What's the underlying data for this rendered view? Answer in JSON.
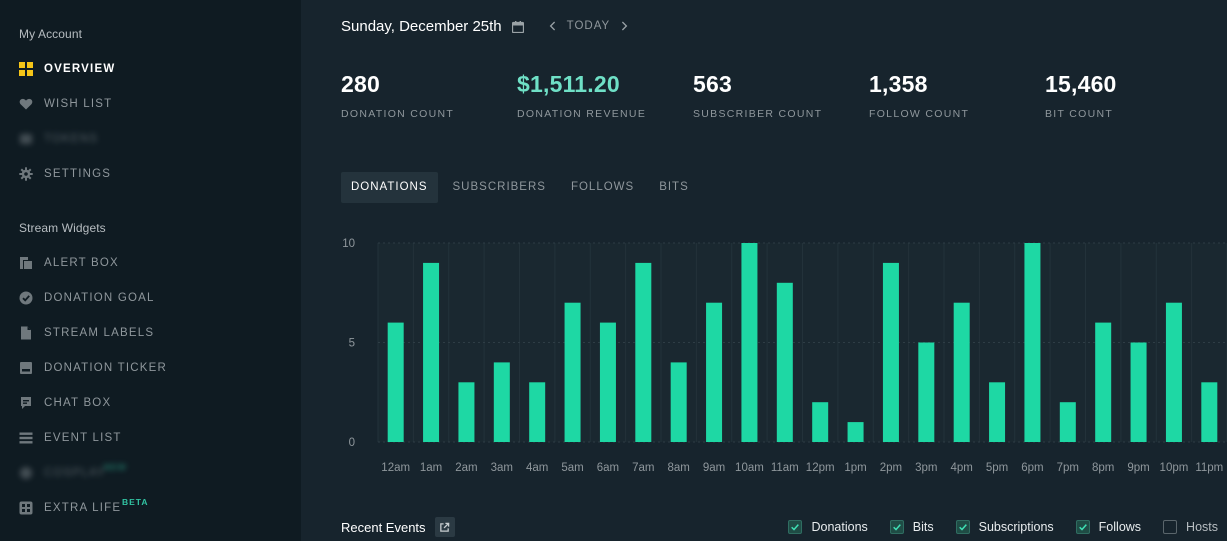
{
  "sidebar": {
    "sections": [
      {
        "title": "My Account",
        "items": [
          {
            "label": "OVERVIEW",
            "icon": "grid-icon",
            "active": true
          },
          {
            "label": "WISH LIST",
            "icon": "heart-icon",
            "active": false
          },
          {
            "label": "TOKENS",
            "icon": "blurred-icon",
            "active": false,
            "blurred": true
          },
          {
            "label": "SETTINGS",
            "icon": "gear-icon",
            "active": false
          }
        ]
      },
      {
        "title": "Stream Widgets",
        "items": [
          {
            "label": "ALERT BOX",
            "icon": "alert-box-icon"
          },
          {
            "label": "DONATION GOAL",
            "icon": "check-circle-icon"
          },
          {
            "label": "STREAM LABELS",
            "icon": "file-icon"
          },
          {
            "label": "DONATION TICKER",
            "icon": "ticker-icon"
          },
          {
            "label": "CHAT BOX",
            "icon": "chat-icon"
          },
          {
            "label": "EVENT LIST",
            "icon": "list-icon"
          },
          {
            "label": "COSPLAY",
            "icon": "blurred-icon",
            "blurred": true,
            "badge": "NEW"
          },
          {
            "label": "EXTRA LIFE",
            "icon": "extra-life-icon",
            "badge": "BETA"
          }
        ]
      }
    ]
  },
  "header": {
    "date": "Sunday, December 25th",
    "today_label": "TODAY"
  },
  "stats": [
    {
      "value": "280",
      "label": "DONATION COUNT",
      "color": "#ffffff"
    },
    {
      "value": "$1,511.20",
      "label": "DONATION REVENUE",
      "color": "#6fe0c6"
    },
    {
      "value": "563",
      "label": "SUBSCRIBER COUNT",
      "color": "#ffffff"
    },
    {
      "value": "1,358",
      "label": "FOLLOW COUNT",
      "color": "#ffffff"
    },
    {
      "value": "15,460",
      "label": "BIT COUNT",
      "color": "#ffffff"
    }
  ],
  "tabs": [
    {
      "label": "DONATIONS",
      "active": true
    },
    {
      "label": "SUBSCRIBERS",
      "active": false
    },
    {
      "label": "FOLLOWS",
      "active": false
    },
    {
      "label": "BITS",
      "active": false
    }
  ],
  "chart_data": {
    "type": "bar",
    "categories": [
      "12am",
      "1am",
      "2am",
      "3am",
      "4am",
      "5am",
      "6am",
      "7am",
      "8am",
      "9am",
      "10am",
      "11am",
      "12pm",
      "1pm",
      "2pm",
      "3pm",
      "4pm",
      "5pm",
      "6pm",
      "7pm",
      "8pm",
      "9pm",
      "10pm",
      "11pm"
    ],
    "values": [
      6,
      9,
      3,
      4,
      3,
      7,
      6,
      9,
      4,
      7,
      10,
      8,
      2,
      1,
      9,
      5,
      7,
      3,
      10,
      2,
      6,
      5,
      7,
      3
    ],
    "ylim": [
      0,
      10
    ],
    "yticks": [
      0,
      5,
      10
    ],
    "grid": true,
    "bar_color": "#1ed8a4"
  },
  "recent_events": {
    "title": "Recent Events",
    "filters": [
      {
        "label": "Donations",
        "checked": true
      },
      {
        "label": "Bits",
        "checked": true
      },
      {
        "label": "Subscriptions",
        "checked": true
      },
      {
        "label": "Follows",
        "checked": true
      },
      {
        "label": "Hosts",
        "checked": false
      }
    ]
  },
  "colors": {
    "sidebar_bg": "#0f1b22",
    "main_bg": "#17242d",
    "accent": "#1ed8a4",
    "active_icon": "#f5c518"
  }
}
